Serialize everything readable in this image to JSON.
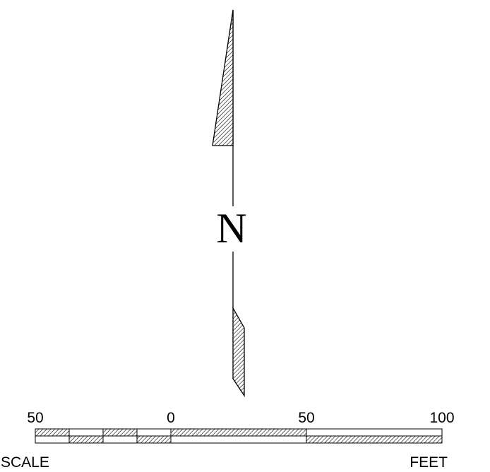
{
  "north_arrow": {
    "letter": "N"
  },
  "scale_bar": {
    "tick_labels": [
      "50",
      "0",
      "50",
      "100"
    ],
    "left_caption": "SCALE",
    "right_caption": "FEET",
    "segments": [
      {
        "from": -50,
        "to": -40
      },
      {
        "from": -40,
        "to": -30
      },
      {
        "from": -30,
        "to": -20
      },
      {
        "from": -20,
        "to": -10
      },
      {
        "from": -10,
        "to": 0
      },
      {
        "from": 0,
        "to": 50
      },
      {
        "from": 50,
        "to": 100
      }
    ]
  },
  "colors": {
    "ink": "#000000",
    "paper": "#ffffff"
  }
}
